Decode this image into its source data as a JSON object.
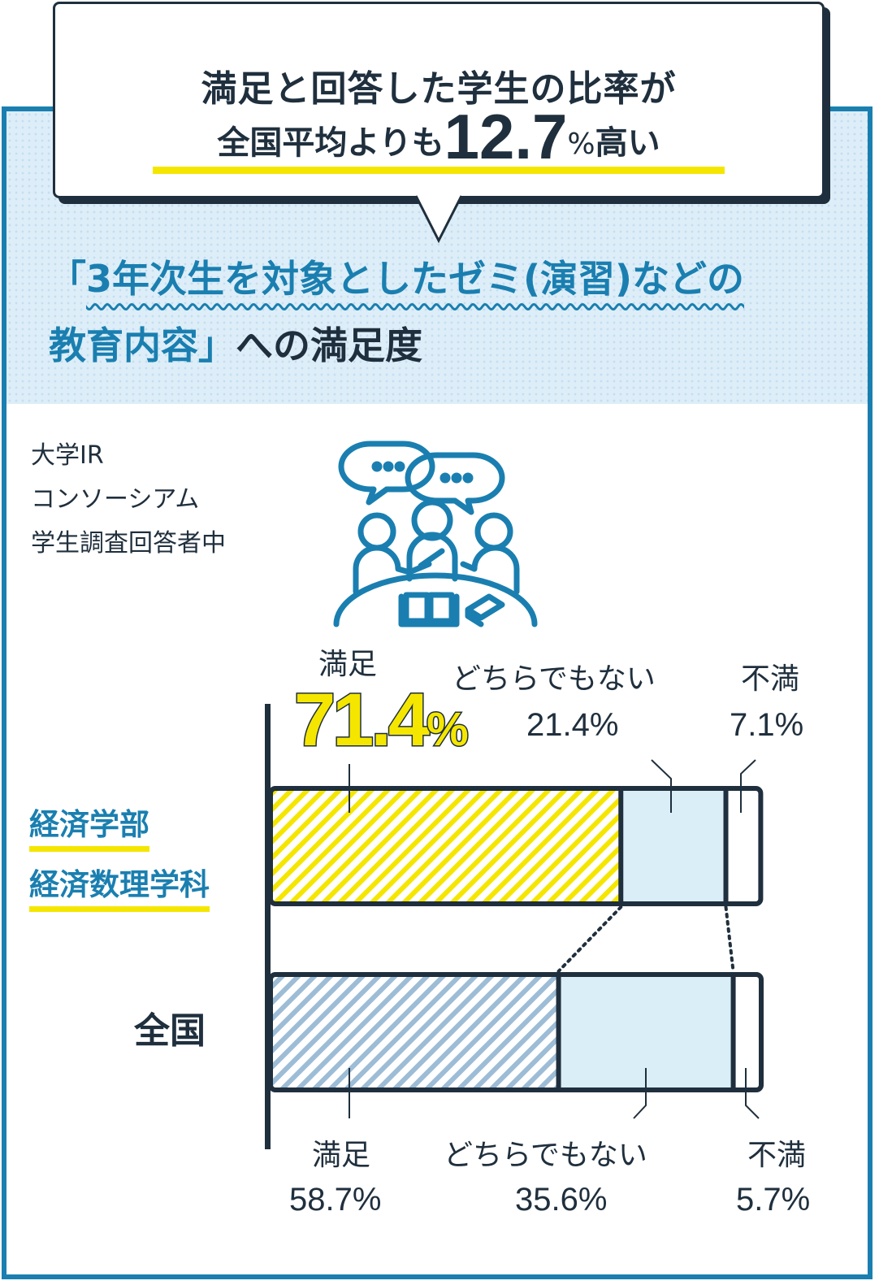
{
  "callout": {
    "line1": "満足と回答した学生の比率が",
    "line2_prefix": "全国平均よりも",
    "line2_value": "12.7",
    "line2_unit": "%",
    "line2_suffix": "高い"
  },
  "subtitle": {
    "open": "「",
    "emphasis": "3年次生を対象としたゼミ(演習)などの",
    "line2_emphasis": "教育内容",
    "close": "」",
    "rest": "への満足度"
  },
  "source_note": [
    "大学IR",
    "コンソーシアム",
    "学生調査回答者中"
  ],
  "colors": {
    "primary_blue": "#1a7fb0",
    "yellow": "#f5e600",
    "light_blue": "#d9eef7",
    "navy": "#1f2f3d",
    "stripe_blue": "#9dbcd6"
  },
  "icons": [
    "discussion-group-icon",
    "speech-bubble-icon",
    "open-book-icon"
  ],
  "chart_data": {
    "type": "bar",
    "orientation": "horizontal",
    "stacked": true,
    "title": "「3年次生を対象としたゼミ(演習)などの教育内容」への満足度",
    "categories": [
      "経済学部\n経済数理学科",
      "全国"
    ],
    "category_lines": [
      [
        "経済学部",
        "経済数理学科"
      ],
      [
        "全国"
      ]
    ],
    "series": [
      {
        "name": "満足",
        "values": [
          71.4,
          58.7
        ]
      },
      {
        "name": "どちらでもない",
        "values": [
          21.4,
          35.6
        ]
      },
      {
        "name": "不満",
        "values": [
          7.1,
          5.7
        ]
      }
    ],
    "value_labels": [
      [
        "71.4",
        "21.4%",
        "7.1%"
      ],
      [
        "58.7%",
        "35.6%",
        "5.7%"
      ]
    ],
    "highlight_unit": "%",
    "xlim": [
      0,
      100
    ],
    "unit": "%",
    "legend": "none",
    "grid": false
  }
}
